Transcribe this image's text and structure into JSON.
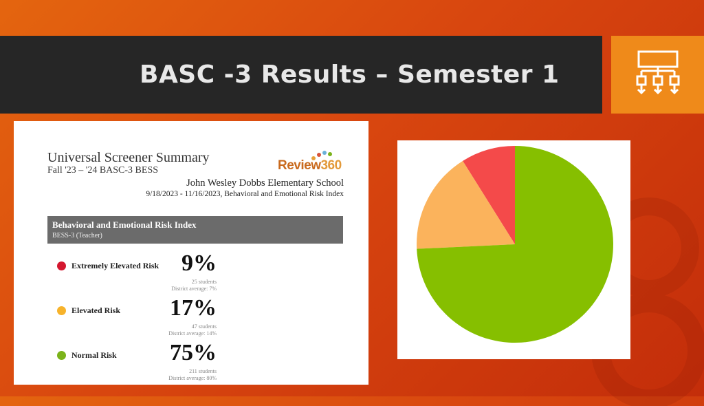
{
  "slide": {
    "title": "BASC -3 Results – Semester 1",
    "background_accent": "#e4650f",
    "icon": "flowchart-icon"
  },
  "report": {
    "title": "Universal Screener Summary",
    "subtitle": "Fall '23 – '24 BASC-3 BESS",
    "logo": {
      "main": "Review",
      "num": "360"
    },
    "school": "John Wesley Dobbs Elementary School",
    "date_range": "9/18/2023 - 11/16/2023, Behavioral and Emotional Risk Index",
    "banner_title": "Behavioral and Emotional Risk Index",
    "banner_subtitle": "BESS-3 (Teacher)",
    "risks": [
      {
        "label": "Extremely Elevated Risk",
        "percent": "9%",
        "students": "25 students",
        "district": "District average: 7%",
        "color": "#d4172f"
      },
      {
        "label": "Elevated Risk",
        "percent": "17%",
        "students": "47 students",
        "district": "District average: 14%",
        "color": "#f7b32b"
      },
      {
        "label": "Normal Risk",
        "percent": "75%",
        "students": "211 students",
        "district": "District average: 80%",
        "color": "#7bb31a"
      }
    ]
  },
  "chart_data": {
    "type": "pie",
    "slices": [
      {
        "label": "Extremely Elevated Risk",
        "value": 9,
        "color": "#f44a4a"
      },
      {
        "label": "Elevated Risk",
        "value": 17,
        "color": "#fbb35c"
      },
      {
        "label": "Normal Risk",
        "value": 75,
        "color": "#86bf00"
      }
    ],
    "start": "12 o'clock",
    "direction": "counterclockwise"
  }
}
